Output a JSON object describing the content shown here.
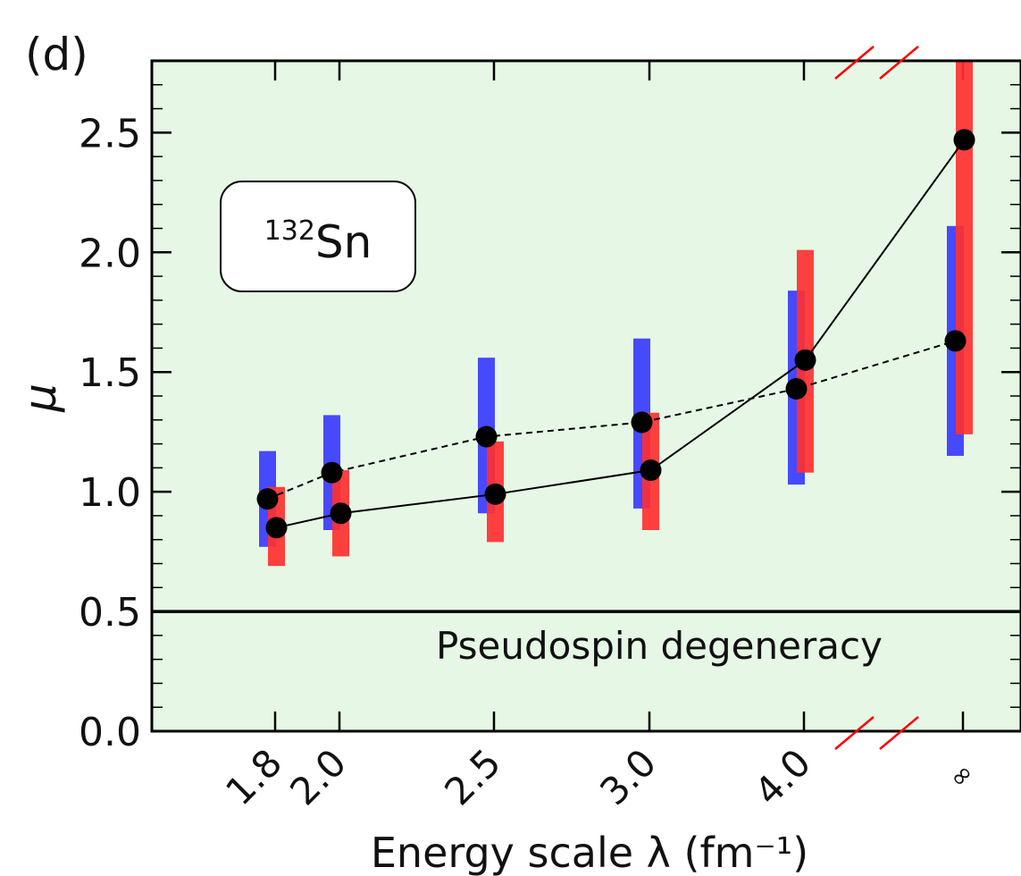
{
  "panel_label": "(d)",
  "nucleus": {
    "mass_number": "132",
    "symbol": "Sn"
  },
  "colors": {
    "background": "#e6f7e6",
    "blue_bar": "#3a3aff",
    "red_bar": "#ff3030",
    "points": "#000000",
    "axis_break": "#ff0000"
  },
  "chart_data": {
    "type": "scatter",
    "xlabel": "Energy scale λ (fm⁻¹)",
    "ylabel": "μ",
    "x_ticks": [
      "1.8",
      "2.0",
      "2.5",
      "3.0",
      "4.0",
      "∞"
    ],
    "y_ticks": [
      "0.0",
      "0.5",
      "1.0",
      "1.5",
      "2.0",
      "2.5"
    ],
    "ylim": [
      0.0,
      2.8
    ],
    "x_axis_break": "between 4.0 and ∞",
    "reference_line": {
      "y": 0.5,
      "label": "Pseudospin degeneracy"
    },
    "series": [
      {
        "line_style": "dashed",
        "bar_color": "blue",
        "points": [
          {
            "x": "1.8",
            "y": 0.97,
            "low": 0.77,
            "high": 1.17
          },
          {
            "x": "2.0",
            "y": 1.08,
            "low": 0.84,
            "high": 1.32
          },
          {
            "x": "2.5",
            "y": 1.23,
            "low": 0.91,
            "high": 1.56
          },
          {
            "x": "3.0",
            "y": 1.29,
            "low": 0.93,
            "high": 1.64
          },
          {
            "x": "4.0",
            "y": 1.43,
            "low": 1.03,
            "high": 1.84
          },
          {
            "x": "∞",
            "y": 1.63,
            "low": 1.15,
            "high": 2.11
          }
        ]
      },
      {
        "line_style": "solid",
        "bar_color": "red",
        "points": [
          {
            "x": "1.8",
            "y": 0.85,
            "low": 0.69,
            "high": 1.02
          },
          {
            "x": "2.0",
            "y": 0.91,
            "low": 0.73,
            "high": 1.09
          },
          {
            "x": "2.5",
            "y": 0.99,
            "low": 0.79,
            "high": 1.21
          },
          {
            "x": "3.0",
            "y": 1.09,
            "low": 0.84,
            "high": 1.33
          },
          {
            "x": "4.0",
            "y": 1.55,
            "low": 1.08,
            "high": 2.01
          },
          {
            "x": "∞",
            "y": 2.47,
            "low": 1.24,
            "high": 2.8
          }
        ]
      }
    ]
  }
}
